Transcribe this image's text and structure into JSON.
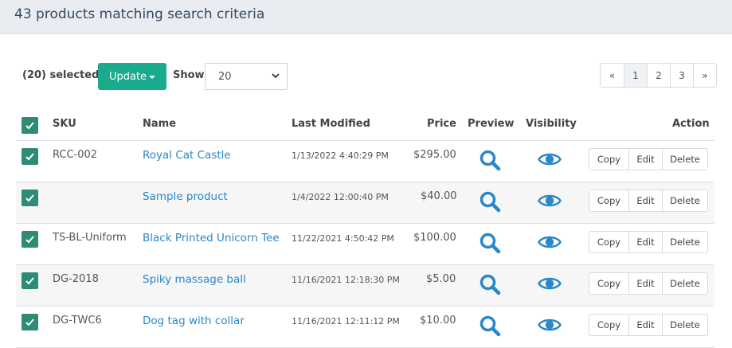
{
  "header": {
    "title": "43 products matching search criteria"
  },
  "toolbar": {
    "selected_label": "(20) selected",
    "update_label": "Update",
    "show_label": "Show",
    "show_value": "20"
  },
  "pagination": {
    "prev": "«",
    "pages": [
      "1",
      "2",
      "3"
    ],
    "next": "»",
    "active": "1"
  },
  "table": {
    "columns": {
      "sku": "SKU",
      "name": "Name",
      "last_modified": "Last Modified",
      "price": "Price",
      "preview": "Preview",
      "visibility": "Visibility",
      "action": "Action"
    },
    "rows": [
      {
        "sku": "RCC-002",
        "name": "Royal Cat Castle",
        "last_modified": "1/13/2022 4:40:29 PM",
        "price": "$295.00"
      },
      {
        "sku": "",
        "name": "Sample product",
        "last_modified": "1/4/2022 12:00:40 PM",
        "price": "$40.00"
      },
      {
        "sku": "TS-BL-Uniform",
        "name": "Black Printed Unicorn Tee",
        "last_modified": "11/22/2021 4:50:42 PM",
        "price": "$100.00"
      },
      {
        "sku": "DG-2018",
        "name": "Spiky massage ball",
        "last_modified": "11/16/2021 12:18:30 PM",
        "price": "$5.00"
      },
      {
        "sku": "DG-TWC6",
        "name": "Dog tag with collar",
        "last_modified": "11/16/2021 12:11:12 PM",
        "price": "$10.00"
      }
    ],
    "actions": {
      "copy": "Copy",
      "edit": "Edit",
      "delete": "Delete"
    }
  },
  "icons": {
    "preview": "magnifier-icon",
    "visibility": "eye-icon",
    "checkbox": "check-icon"
  },
  "colors": {
    "accent": "#1aaa8c",
    "checkbox": "#2e8b75",
    "link": "#2a87c8",
    "icon": "#2a87c8"
  }
}
